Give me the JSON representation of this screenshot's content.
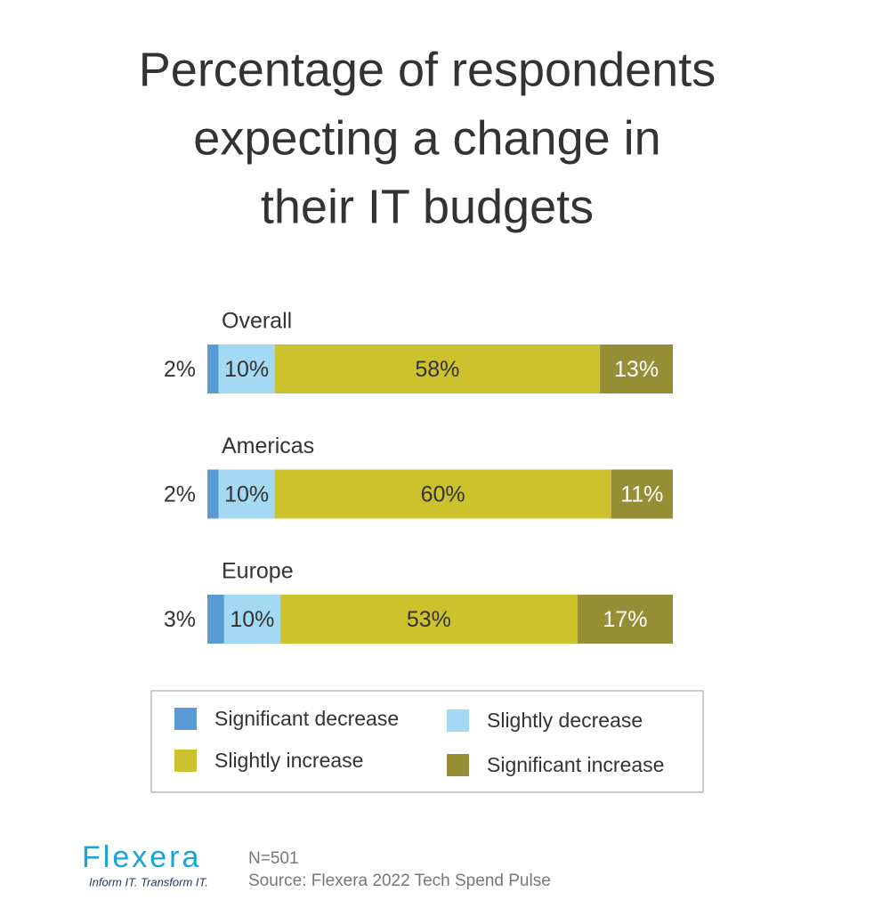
{
  "chart_data": {
    "type": "stacked_bar",
    "title": [
      "Percentage of respondents",
      "expecting a change in",
      "their IT budgets"
    ],
    "categories": [
      "Overall",
      "Americas",
      "Europe"
    ],
    "series": [
      {
        "name": "Significant decrease",
        "color": "#5b9bd5",
        "values": [
          2,
          2,
          3
        ],
        "value_labels": [
          "2%",
          "2%",
          "3%"
        ]
      },
      {
        "name": "Slightly decrease",
        "color": "#a3d9f2",
        "values": [
          10,
          10,
          10
        ],
        "value_labels": [
          "10%",
          "10%",
          "10%"
        ]
      },
      {
        "name": "Slightly increase",
        "color": "#cbc22e",
        "values": [
          58,
          60,
          53
        ],
        "value_labels": [
          "58%",
          "60%",
          "53%"
        ]
      },
      {
        "name": "Significant increase",
        "color": "#968e35",
        "values": [
          13,
          11,
          17
        ],
        "value_labels": [
          "13%",
          "11%",
          "17%"
        ]
      }
    ]
  },
  "footer": {
    "logo": "Flexera",
    "tagline": "Inform IT. Transform IT.",
    "sample": "N=501",
    "source": "Source: Flexera 2022 Tech Spend Pulse"
  }
}
